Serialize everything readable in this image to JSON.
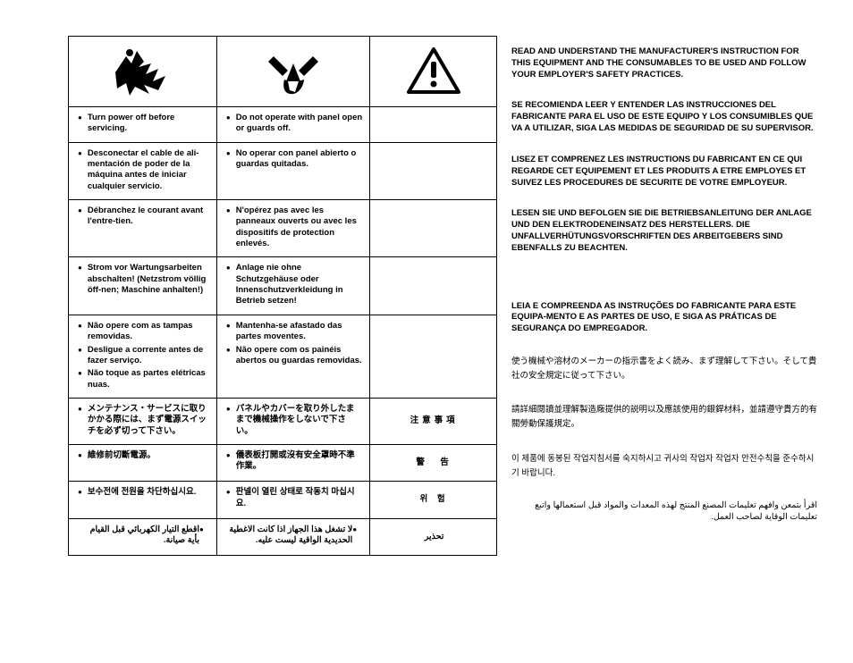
{
  "table": {
    "rows": [
      {
        "c1": [
          "Turn power off before servicing."
        ],
        "c2": [
          "Do not operate with panel open or guards off."
        ],
        "c3": null
      },
      {
        "c1": [
          "Desconectar el cable de ali-mentación de poder de la máquina antes de iniciar cualquier servicio."
        ],
        "c2": [
          "No operar con panel abierto o guardas quitadas."
        ],
        "c3": null
      },
      {
        "c1": [
          "Débranchez le courant avant l'entre-tien."
        ],
        "c2": [
          "N'opérez pas avec les panneaux ouverts ou avec les dispositifs de protection enlevés."
        ],
        "c3": null
      },
      {
        "c1": [
          "Strom vor Wartungsarbeiten abschalten! (Netzstrom völlig öff-nen; Maschine anhalten!)"
        ],
        "c2": [
          "Anlage nie ohne Schutzgehäuse oder Innenschutzverkleidung in Betrieb setzen!"
        ],
        "c3": null
      },
      {
        "c1": [
          "Não opere com as tampas removidas.",
          "Desligue a corrente antes de fazer serviço.",
          "Não toque as partes elétricas nuas."
        ],
        "c2": [
          "Mantenha-se afastado das partes moventes.",
          "Não opere com os painéis abertos ou guardas removidas."
        ],
        "c3": null
      },
      {
        "c1": [
          "メンテナンス・サービスに取りかかる際には、まず電源スイッチを必ず切って下さい。"
        ],
        "c2": [
          "パネルやカバーを取り外したままで機械操作をしないで下さい。"
        ],
        "c3_heading": "注意事項"
      },
      {
        "c1": [
          "維修前切斷電源。"
        ],
        "c2": [
          "儀表板打開或沒有安全罩時不準作業。"
        ],
        "c3_heading": "警　告"
      },
      {
        "c1": [
          "보수전에 전원을 차단하십시요."
        ],
        "c2": [
          "판넬이 열린 상태로 작동치 마십시요."
        ],
        "c3_heading": "위 험"
      },
      {
        "c1_ar": "اقطع التيار الكهربائي قبل القيام بأية صيانة.",
        "c2_ar": "لا تشغل هذا الجهاز اذا كانت الاغطية الحديدية الواقية ليست عليه.",
        "c3_heading_ar": "تحذير"
      }
    ]
  },
  "right": {
    "en": "READ AND UNDERSTAND THE MANUFACTURER'S INSTRUCTION FOR THIS EQUIPMENT AND THE CONSUMABLES TO BE USED AND FOLLOW YOUR EMPLOYER'S SAFETY PRACTICES.",
    "es": "SE RECOMIENDA LEER Y ENTENDER LAS INSTRUCCIONES DEL FABRICANTE PARA EL USO DE ESTE EQUIPO Y LOS CONSUMIBLES QUE VA A UTILIZAR, SIGA LAS MEDIDAS DE SEGURIDAD DE SU SUPERVISOR.",
    "fr": "LISEZ ET COMPRENEZ LES INSTRUCTIONS DU FABRICANT EN CE QUI REGARDE CET EQUIPEMENT ET LES PRODUITS A ETRE EMPLOYES ET SUIVEZ LES PROCEDURES DE SECURITE DE VOTRE EMPLOYEUR.",
    "de": "LESEN SIE UND BEFOLGEN SIE DIE BETRIEBSANLEITUNG DER ANLAGE UND DEN ELEKTRODENEINSATZ DES HERSTELLERS. DIE UNFALLVERHÜTUNGSVORSCHRIFTEN DES ARBEITGEBERS SIND EBENFALLS ZU BEACHTEN.",
    "pt": "LEIA E COMPREENDA AS INSTRUÇÕES DO FABRICANTE PARA ESTE EQUIPA-MENTO E AS PARTES DE USO, E SIGA AS PRÁTICAS DE SEGURANÇA DO EMPREGADOR.",
    "ja": "使う機械や溶材のメーカーの指示書をよく読み、まず理解して下さい。そして貴社の安全規定に従って下さい。",
    "zh": "請詳細閱讀並理解製造廠提供的説明以及應該使用的銀銲材料，並請遵守貴方的有關勞動保護規定。",
    "ko": "이 제품에 동봉된 작업지침서를 숙지하시고 귀사의 작업자 작업자 안전수칙을 준수하시기 바랍니다.",
    "ar": "اقرأ بتمعن وافهم تعليمات المصنع المنتج لهذه المعدات والمواد قبل استعمالها واتبع تعليمات الوقاية لصاحب العمل."
  }
}
